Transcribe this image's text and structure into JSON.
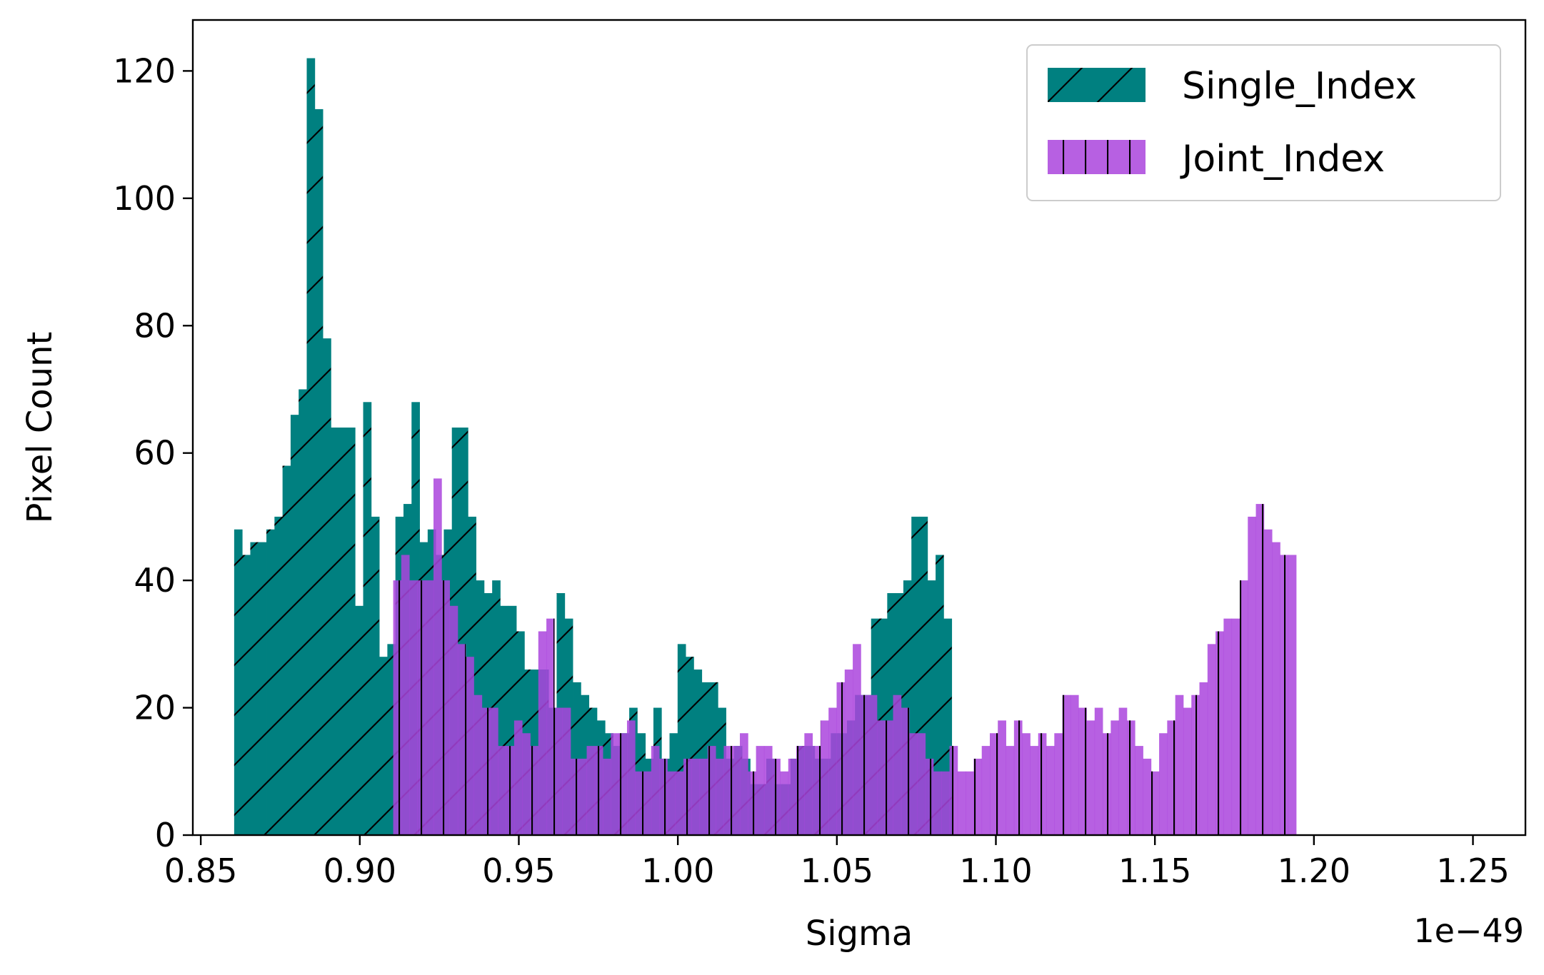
{
  "chart_data": {
    "type": "bar",
    "subtype": "histogram",
    "xlabel": "Sigma",
    "ylabel": "Pixel Count",
    "x_offset_label": "1e−49",
    "xlim": [
      0.8475,
      1.2665
    ],
    "ylim": [
      0,
      128
    ],
    "x_ticks": [
      0.85,
      0.9,
      0.95,
      1.0,
      1.05,
      1.1,
      1.15,
      1.2,
      1.25
    ],
    "x_tick_labels": [
      "0.85",
      "0.90",
      "0.95",
      "1.00",
      "1.05",
      "1.10",
      "1.15",
      "1.20",
      "1.25"
    ],
    "y_ticks": [
      0,
      20,
      40,
      60,
      80,
      100,
      120
    ],
    "y_tick_labels": [
      "0",
      "20",
      "40",
      "60",
      "80",
      "100",
      "120"
    ],
    "grid": false,
    "legend_position": "top-right",
    "series": [
      {
        "name": "Single_Index",
        "color": "#008080",
        "hatch": "diagonal",
        "alpha": 1.0,
        "x_start": 0.8605,
        "bin_width": 0.002535,
        "values": [
          48,
          44,
          46,
          46,
          48,
          50,
          58,
          66,
          70,
          122,
          114,
          78,
          64,
          64,
          64,
          36,
          68,
          50,
          28,
          30,
          50,
          52,
          68,
          46,
          48,
          44,
          48,
          64,
          64,
          50,
          40,
          38,
          40,
          36,
          36,
          32,
          26,
          26,
          26,
          20,
          38,
          34,
          24,
          22,
          20,
          18,
          16,
          14,
          16,
          20,
          16,
          12,
          20,
          12,
          16,
          30,
          28,
          26,
          24,
          24,
          20,
          12,
          14,
          12,
          8,
          8,
          12,
          8,
          8,
          12,
          14,
          14,
          12,
          12,
          16,
          16,
          18,
          22,
          22,
          34,
          34,
          38,
          38,
          40,
          50,
          50,
          40,
          44,
          34
        ]
      },
      {
        "name": "Joint_Index",
        "color": "#aa44dd",
        "hatch": "vertical",
        "alpha": 0.85,
        "x_start": 0.9105,
        "bin_width": 0.002535,
        "values": [
          40,
          44,
          40,
          40,
          40,
          56,
          40,
          36,
          30,
          28,
          22,
          20,
          20,
          14,
          14,
          18,
          16,
          14,
          32,
          34,
          20,
          20,
          12,
          12,
          14,
          14,
          12,
          16,
          16,
          18,
          10,
          10,
          14,
          12,
          10,
          10,
          12,
          12,
          12,
          14,
          12,
          14,
          14,
          16,
          10,
          14,
          14,
          12,
          10,
          12,
          14,
          16,
          14,
          18,
          20,
          24,
          26,
          30,
          22,
          22,
          18,
          18,
          22,
          20,
          16,
          16,
          12,
          10,
          10,
          14,
          10,
          10,
          12,
          14,
          16,
          18,
          14,
          18,
          16,
          14,
          16,
          14,
          16,
          22,
          22,
          20,
          18,
          20,
          16,
          18,
          20,
          18,
          14,
          12,
          10,
          16,
          18,
          22,
          20,
          22,
          24,
          30,
          32,
          34,
          34,
          40,
          50,
          52,
          48,
          46,
          44,
          44
        ]
      }
    ]
  }
}
